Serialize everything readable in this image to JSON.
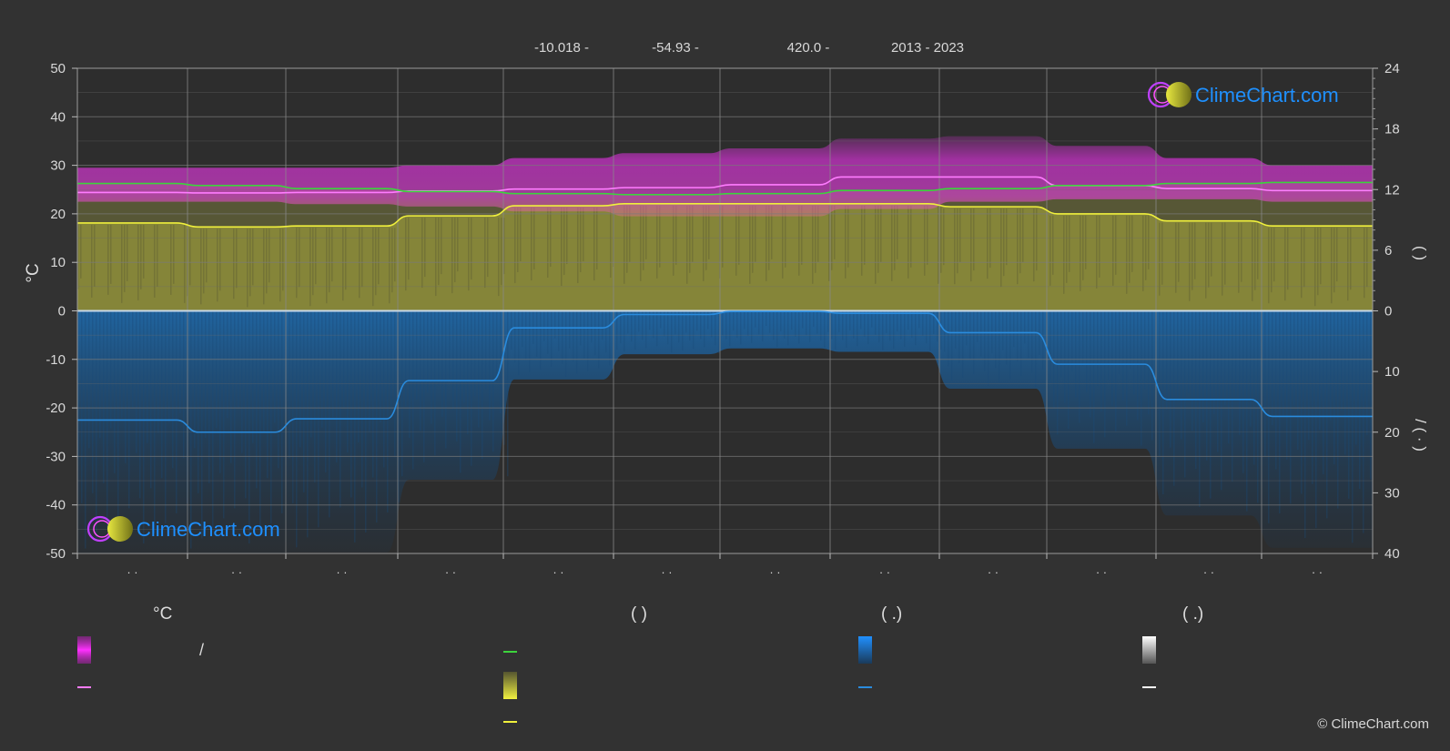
{
  "header": {
    "lat": "-10.018 -",
    "lon": "-54.93 -",
    "elev": "420.0 -",
    "years": "2013 - 2023"
  },
  "brand": {
    "name": "ClimeChart.com",
    "copyright": "© ClimeChart.com",
    "color": "#1e90ff"
  },
  "axes": {
    "left_unit": "°C",
    "right_top_label": "(   )",
    "right_bottom_label": "/    (  ·  )"
  },
  "legend": {
    "col1_title": "°C",
    "col1_slash": "/",
    "col2_title": "(            )",
    "col3_title": "(    .)",
    "col4_title": "(    .)"
  },
  "colors": {
    "background": "#323232",
    "temp_band": "#c830c8",
    "temp_mean": "#ff7cff",
    "daylight": "#3cd43c",
    "sunshine_band": "#8a8a3a",
    "sunshine_mean": "#f0f03c",
    "rain_band": "#1a5c96",
    "rain_mean": "#2a8cde",
    "snow_mean": "#ffffff"
  },
  "chart_data": {
    "type": "area",
    "months": 12,
    "month_labels": [
      "· ·",
      "· ·",
      "· ·",
      "· ·",
      "· ·",
      "· ·",
      "· ·",
      "· ·",
      "· ·",
      "· ·",
      "· ·",
      "· ·"
    ],
    "left_axis": {
      "unit": "°C",
      "ylim": [
        -50,
        50
      ],
      "ticks": [
        50,
        40,
        30,
        20,
        10,
        0,
        -10,
        -20,
        -30,
        -40,
        -50
      ]
    },
    "right_axis_top": {
      "unit": "h",
      "ylim": [
        0,
        24
      ],
      "ticks": [
        24,
        18,
        12,
        6,
        0
      ]
    },
    "right_axis_bottom": {
      "unit": "mm",
      "ylim": [
        0,
        40
      ],
      "ticks": [
        0,
        10,
        20,
        30,
        40
      ]
    },
    "grid": true,
    "series": [
      {
        "key": "temp_max_band",
        "axis": "left",
        "values": [
          29.5,
          29.5,
          29.5,
          30.0,
          31.5,
          32.5,
          33.5,
          35.5,
          36.0,
          34.0,
          31.5,
          30.0
        ]
      },
      {
        "key": "temp_min_band",
        "axis": "left",
        "values": [
          22.5,
          22.5,
          22.0,
          21.5,
          20.5,
          19.5,
          19.5,
          21.0,
          22.5,
          23.0,
          23.0,
          22.5
        ]
      },
      {
        "key": "temp_mean",
        "axis": "left",
        "values": [
          24.4,
          24.3,
          24.4,
          24.7,
          25.1,
          25.4,
          26.0,
          27.6,
          27.6,
          25.8,
          25.2,
          24.8
        ]
      },
      {
        "key": "daylight",
        "axis": "right_top",
        "values": [
          12.6,
          12.4,
          12.1,
          11.8,
          11.6,
          11.5,
          11.6,
          11.9,
          12.1,
          12.4,
          12.6,
          12.7
        ]
      },
      {
        "key": "sunshine_mean",
        "axis": "right_top",
        "values": [
          8.7,
          8.3,
          8.4,
          9.4,
          10.4,
          10.6,
          10.6,
          10.6,
          10.3,
          9.6,
          8.9,
          8.4
        ]
      },
      {
        "key": "rain_mean",
        "axis": "right_bottom",
        "values": [
          18.0,
          20.0,
          17.8,
          11.5,
          2.8,
          0.6,
          0.1,
          0.4,
          3.6,
          8.8,
          14.6,
          17.4
        ]
      },
      {
        "key": "snow_mean",
        "axis": "right_bottom",
        "values": [
          0,
          0,
          0,
          0,
          0,
          0,
          0,
          0,
          0,
          0,
          0,
          0
        ]
      }
    ]
  }
}
